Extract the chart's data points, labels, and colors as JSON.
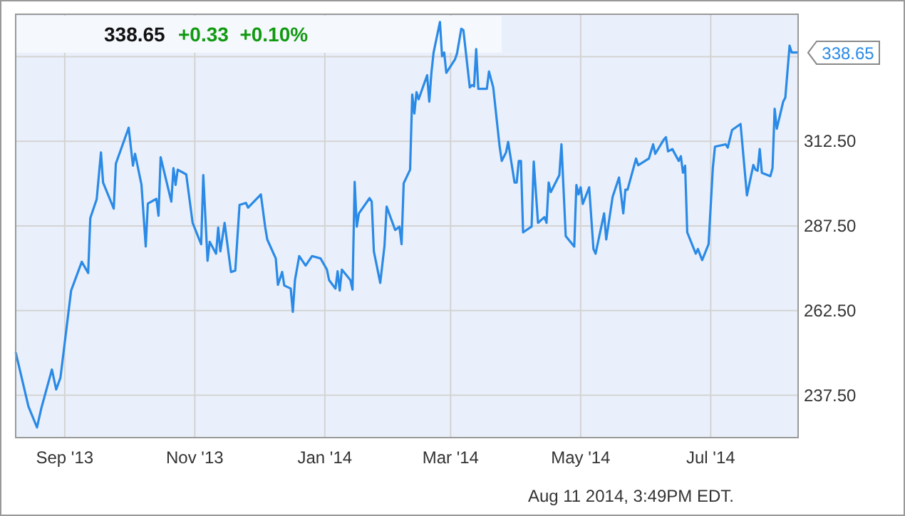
{
  "chart_data": {
    "type": "line",
    "title": "338.65",
    "subtitle": "+0.33  +0.10%",
    "grid": true,
    "marker": "none",
    "line_style": "solid",
    "xlim": [
      "2013-08-09",
      "2014-08-11"
    ],
    "xticks": [
      {
        "value": "2013-09-01",
        "label": "Sep '13"
      },
      {
        "value": "2013-11-01",
        "label": "Nov '13"
      },
      {
        "value": "2014-01-01",
        "label": "Jan '14"
      },
      {
        "value": "2014-03-01",
        "label": "Mar '14"
      },
      {
        "value": "2014-05-01",
        "label": "May '14"
      },
      {
        "value": "2014-07-01",
        "label": "Jul '14"
      }
    ],
    "ylim": [
      225,
      350
    ],
    "yticks": [
      {
        "value": 237.5,
        "label": "237.50"
      },
      {
        "value": 262.5,
        "label": "262.50"
      },
      {
        "value": 287.5,
        "label": "287.50"
      },
      {
        "value": 312.5,
        "label": "312.50"
      },
      {
        "value": 337.5,
        "label": null
      }
    ],
    "annotations": [
      {
        "text": "338.65",
        "x": "2014-08-11",
        "y": 338.65
      },
      "Aug 11 2014, 3:49PM EDT."
    ],
    "series": [
      {
        "color": "#2a8ae6",
        "x": [
          "2013-08-09",
          "2013-08-15",
          "2013-08-19",
          "2013-08-21",
          "2013-08-26",
          "2013-08-28",
          "2013-08-30",
          "2013-09-04",
          "2013-09-09",
          "2013-09-12",
          "2013-09-13",
          "2013-09-16",
          "2013-09-18",
          "2013-09-19",
          "2013-09-24",
          "2013-09-25",
          "2013-10-01",
          "2013-10-03",
          "2013-10-04",
          "2013-10-07",
          "2013-10-09",
          "2013-10-10",
          "2013-10-14",
          "2013-10-15",
          "2013-10-16",
          "2013-10-21",
          "2013-10-22",
          "2013-10-23",
          "2013-10-24",
          "2013-10-28",
          "2013-10-31",
          "2013-11-04",
          "2013-11-05",
          "2013-11-07",
          "2013-11-08",
          "2013-11-11",
          "2013-11-12",
          "2013-11-13",
          "2013-11-15",
          "2013-11-18",
          "2013-11-20",
          "2013-11-22",
          "2013-11-25",
          "2013-11-26",
          "2013-12-02",
          "2013-12-04",
          "2013-12-05",
          "2013-12-09",
          "2013-12-10",
          "2013-12-12",
          "2013-12-13",
          "2013-12-16",
          "2013-12-17",
          "2013-12-18",
          "2013-12-20",
          "2013-12-23",
          "2013-12-26",
          "2013-12-30",
          "2014-01-02",
          "2014-01-03",
          "2014-01-06",
          "2014-01-07",
          "2014-01-08",
          "2014-01-09",
          "2014-01-13",
          "2014-01-14",
          "2014-01-15",
          "2014-01-16",
          "2014-01-17",
          "2014-01-22",
          "2014-01-23",
          "2014-01-24",
          "2014-01-27",
          "2014-01-29",
          "2014-01-30",
          "2014-02-03",
          "2014-02-05",
          "2014-02-06",
          "2014-02-07",
          "2014-02-10",
          "2014-02-11",
          "2014-02-12",
          "2014-02-13",
          "2014-02-14",
          "2014-02-18",
          "2014-02-19",
          "2014-02-20",
          "2014-02-21",
          "2014-02-24",
          "2014-02-25",
          "2014-02-26",
          "2014-02-27",
          "2014-03-03",
          "2014-03-04",
          "2014-03-06",
          "2014-03-07",
          "2014-03-10",
          "2014-03-11",
          "2014-03-12",
          "2014-03-13",
          "2014-03-14",
          "2014-03-18",
          "2014-03-19",
          "2014-03-21",
          "2014-03-24",
          "2014-03-25",
          "2014-03-27",
          "2014-03-28",
          "2014-03-31",
          "2014-04-01",
          "2014-04-02",
          "2014-04-03",
          "2014-04-04",
          "2014-04-08",
          "2014-04-09",
          "2014-04-11",
          "2014-04-14",
          "2014-04-15",
          "2014-04-16",
          "2014-04-17",
          "2014-04-21",
          "2014-04-22",
          "2014-04-24",
          "2014-04-28",
          "2014-04-29",
          "2014-04-30",
          "2014-05-01",
          "2014-05-02",
          "2014-05-05",
          "2014-05-07",
          "2014-05-08",
          "2014-05-12",
          "2014-05-13",
          "2014-05-16",
          "2014-05-19",
          "2014-05-21",
          "2014-05-22",
          "2014-05-23",
          "2014-05-27",
          "2014-05-28",
          "2014-06-02",
          "2014-06-04",
          "2014-06-05",
          "2014-06-09",
          "2014-06-10",
          "2014-06-11",
          "2014-06-13",
          "2014-06-16",
          "2014-06-17",
          "2014-06-18",
          "2014-06-19",
          "2014-06-20",
          "2014-06-24",
          "2014-06-25",
          "2014-06-27",
          "2014-06-30",
          "2014-07-02",
          "2014-07-03",
          "2014-07-08",
          "2014-07-09",
          "2014-07-11",
          "2014-07-15",
          "2014-07-18",
          "2014-07-21",
          "2014-07-22",
          "2014-07-23",
          "2014-07-24",
          "2014-07-25",
          "2014-07-29",
          "2014-07-30",
          "2014-07-31",
          "2014-08-01",
          "2014-08-04",
          "2014-08-05",
          "2014-08-07",
          "2014-08-08",
          "2014-08-11"
        ],
        "values": [
          250.2,
          234.2,
          228.0,
          233.6,
          245.1,
          239.2,
          242.7,
          268.4,
          276.9,
          273.6,
          289.8,
          295.4,
          309.2,
          300.3,
          292.6,
          305.9,
          316.5,
          305.3,
          308.8,
          299.7,
          281.4,
          294.1,
          295.5,
          290.5,
          307.8,
          294.7,
          304.6,
          299.6,
          304.1,
          302.7,
          288.4,
          282.1,
          302.5,
          277.2,
          282.8,
          279.3,
          287.0,
          280.0,
          288.4,
          273.9,
          274.3,
          293.7,
          294.3,
          292.9,
          296.8,
          287.3,
          283.5,
          277.9,
          270.1,
          273.9,
          269.9,
          269.0,
          262.1,
          271.5,
          278.6,
          275.8,
          278.6,
          277.9,
          274.6,
          271.5,
          269.0,
          274.1,
          268.4,
          274.6,
          271.5,
          268.7,
          300.5,
          287.3,
          291.2,
          295.7,
          294.7,
          280.0,
          270.7,
          281.7,
          293.2,
          286.3,
          287.3,
          282.1,
          300.1,
          304.1,
          326.3,
          320.7,
          327.0,
          324.9,
          332.0,
          324.2,
          332.7,
          338.6,
          347.7,
          337.6,
          338.7,
          332.7,
          336.6,
          338.4,
          345.7,
          345.3,
          328.4,
          329.1,
          328.7,
          339.7,
          328.0,
          328.0,
          333.1,
          328.4,
          310.9,
          306.7,
          309.2,
          312.3,
          300.3,
          300.3,
          306.7,
          306.7,
          285.6,
          287.3,
          306.5,
          288.4,
          290.1,
          288.4,
          300.3,
          297.5,
          302.5,
          311.6,
          284.5,
          281.4,
          299.6,
          296.8,
          298.9,
          294.0,
          298.9,
          280.7,
          279.3,
          291.2,
          283.5,
          296.1,
          301.8,
          291.2,
          298.2,
          298.2,
          307.4,
          305.4,
          307.4,
          311.6,
          308.8,
          313.0,
          313.7,
          309.5,
          310.2,
          306.7,
          308.1,
          303.2,
          305.3,
          285.6,
          279.3,
          280.7,
          277.4,
          282.1,
          304.6,
          310.9,
          311.6,
          310.6,
          315.8,
          317.6,
          296.5,
          305.5,
          304.1,
          303.8,
          310.2,
          303.2,
          302.2,
          304.6,
          322.1,
          316.2,
          324.2,
          325.4,
          340.7,
          338.7,
          338.7
        ]
      }
    ]
  }
}
